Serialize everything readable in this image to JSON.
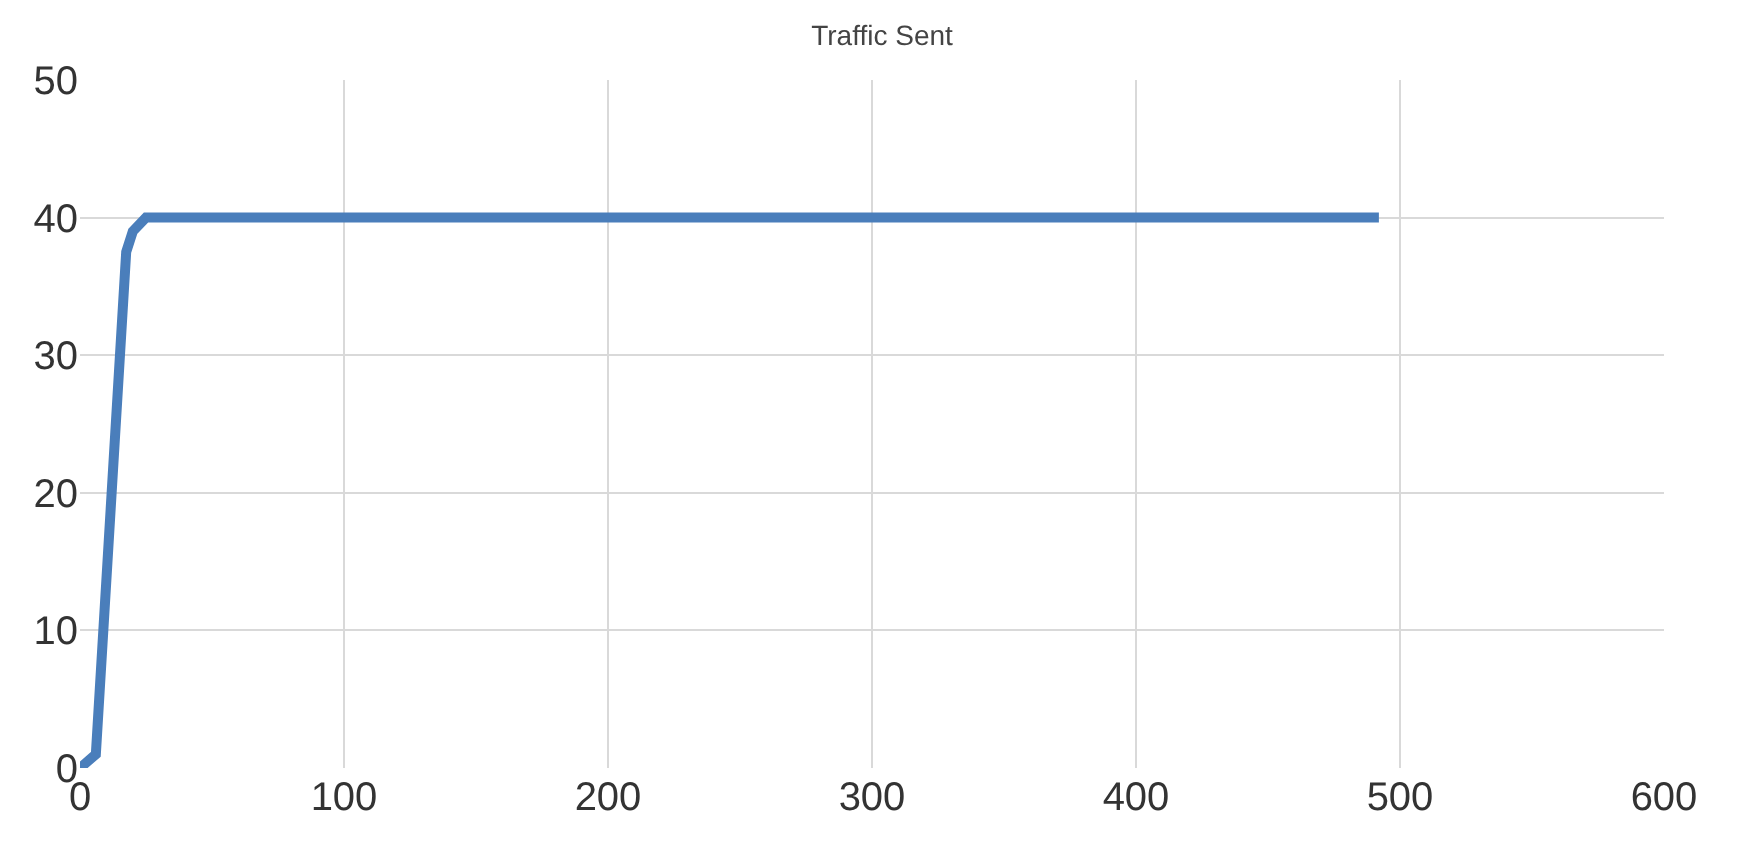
{
  "chart_data": {
    "type": "line",
    "title": "Traffic Sent",
    "x": [
      0,
      6,
      17.5,
      20,
      25,
      492
    ],
    "series": [
      {
        "color": "#4a7ebb",
        "values": [
          0,
          1,
          37.5,
          39,
          40,
          40
        ]
      }
    ],
    "xlim": [
      0,
      600
    ],
    "xticks": [
      0,
      100,
      200,
      300,
      400,
      500,
      600
    ],
    "ylim": [
      0,
      50
    ],
    "yticks": [
      0,
      10,
      20,
      30,
      40,
      50
    ],
    "grid": true,
    "marker": "none",
    "line_style": "solid"
  }
}
